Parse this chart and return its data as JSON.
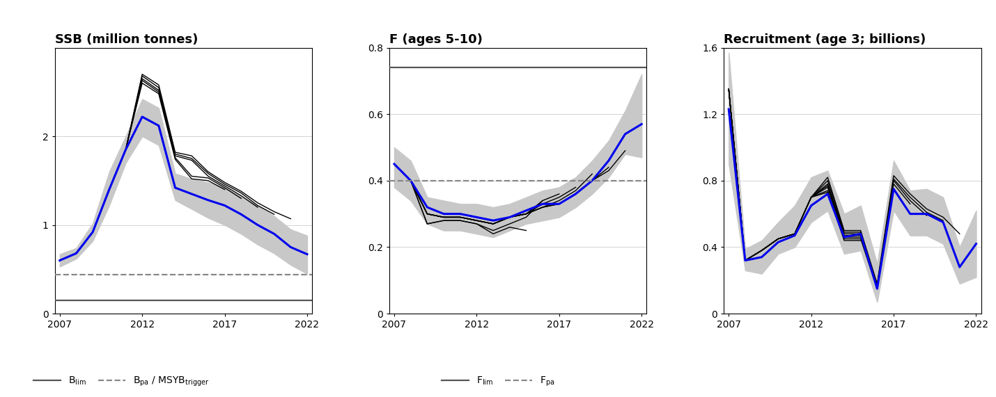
{
  "years": [
    2007,
    2008,
    2009,
    2010,
    2011,
    2012,
    2013,
    2014,
    2015,
    2016,
    2017,
    2018,
    2019,
    2020,
    2021,
    2022
  ],
  "ssb_blue": [
    0.6,
    0.68,
    0.92,
    1.4,
    1.85,
    2.22,
    2.12,
    1.42,
    1.35,
    1.28,
    1.22,
    1.12,
    1.0,
    0.9,
    0.75,
    0.67
  ],
  "ssb_ci_lo": [
    0.53,
    0.62,
    0.82,
    1.22,
    1.7,
    2.0,
    1.9,
    1.28,
    1.18,
    1.08,
    1.0,
    0.9,
    0.78,
    0.68,
    0.55,
    0.45
  ],
  "ssb_ci_hi": [
    0.67,
    0.74,
    1.02,
    1.6,
    2.0,
    2.42,
    2.32,
    1.58,
    1.52,
    1.48,
    1.42,
    1.32,
    1.22,
    1.1,
    0.95,
    0.88
  ],
  "ssb_retro": [
    [
      0.6,
      0.68,
      0.92,
      1.4,
      1.85,
      2.7,
      2.58,
      1.82,
      1.78,
      1.6,
      1.48,
      1.38,
      1.25,
      1.15,
      1.07,
      null
    ],
    [
      0.6,
      0.68,
      0.92,
      1.4,
      1.85,
      2.68,
      2.55,
      1.8,
      1.75,
      1.58,
      1.46,
      1.36,
      1.22,
      1.12,
      null,
      null
    ],
    [
      0.6,
      0.68,
      0.92,
      1.4,
      1.85,
      2.65,
      2.52,
      1.78,
      1.73,
      1.55,
      1.44,
      1.33,
      1.2,
      null,
      null,
      null
    ],
    [
      0.6,
      0.68,
      0.92,
      1.4,
      1.85,
      2.63,
      2.5,
      1.76,
      1.55,
      1.53,
      1.42,
      1.3,
      null,
      null,
      null,
      null
    ],
    [
      0.6,
      0.68,
      0.92,
      1.4,
      1.85,
      2.6,
      2.48,
      1.74,
      1.52,
      1.5,
      1.4,
      null,
      null,
      null,
      null,
      null
    ]
  ],
  "ssb_blim": 0.15,
  "ssb_bpa": 0.44,
  "ssb_ylim": [
    0,
    3.0
  ],
  "ssb_yticks": [
    0,
    1,
    2
  ],
  "f_blue": [
    0.45,
    0.4,
    0.32,
    0.3,
    0.3,
    0.29,
    0.28,
    0.29,
    0.31,
    0.33,
    0.33,
    0.36,
    0.4,
    0.46,
    0.54,
    0.57
  ],
  "f_ci_lo": [
    0.38,
    0.34,
    0.27,
    0.25,
    0.25,
    0.24,
    0.23,
    0.25,
    0.27,
    0.28,
    0.29,
    0.32,
    0.36,
    0.41,
    0.48,
    0.47
  ],
  "f_ci_hi": [
    0.5,
    0.46,
    0.35,
    0.34,
    0.33,
    0.33,
    0.32,
    0.33,
    0.35,
    0.37,
    0.38,
    0.41,
    0.46,
    0.52,
    0.61,
    0.72
  ],
  "f_retro": [
    [
      0.45,
      0.4,
      0.3,
      0.29,
      0.29,
      0.28,
      0.27,
      0.29,
      0.3,
      0.32,
      0.33,
      0.36,
      0.4,
      0.43,
      0.49,
      null
    ],
    [
      0.45,
      0.4,
      0.3,
      0.29,
      0.29,
      0.28,
      0.27,
      0.29,
      0.3,
      0.32,
      0.33,
      0.36,
      0.4,
      0.44,
      null,
      null
    ],
    [
      0.45,
      0.4,
      0.3,
      0.29,
      0.29,
      0.28,
      0.27,
      0.29,
      0.3,
      0.32,
      0.34,
      0.37,
      0.42,
      null,
      null,
      null
    ],
    [
      0.45,
      0.4,
      0.3,
      0.29,
      0.29,
      0.28,
      0.27,
      0.29,
      0.3,
      0.33,
      0.35,
      0.38,
      null,
      null,
      null,
      null
    ],
    [
      0.45,
      0.4,
      0.3,
      0.29,
      0.29,
      0.28,
      0.27,
      0.29,
      0.3,
      0.34,
      0.36,
      null,
      null,
      null,
      null,
      null
    ],
    [
      0.45,
      0.4,
      0.27,
      0.28,
      0.28,
      0.27,
      0.25,
      0.27,
      0.29,
      0.34,
      null,
      null,
      null,
      null,
      null,
      null
    ],
    [
      0.45,
      0.4,
      0.27,
      0.28,
      0.28,
      0.27,
      0.24,
      0.26,
      0.25,
      null,
      null,
      null,
      null,
      null,
      null,
      null
    ]
  ],
  "f_flim": 0.74,
  "f_fpa": 0.4,
  "f_ylim": [
    0,
    0.8
  ],
  "f_yticks": [
    0.0,
    0.2,
    0.4,
    0.6,
    0.8
  ],
  "rec_blue": [
    1.23,
    0.32,
    0.34,
    0.43,
    0.47,
    0.65,
    0.72,
    0.46,
    0.48,
    0.15,
    0.75,
    0.6,
    0.6,
    0.55,
    0.28,
    0.42
  ],
  "rec_ci_lo": [
    0.9,
    0.26,
    0.24,
    0.36,
    0.4,
    0.55,
    0.62,
    0.36,
    0.38,
    0.07,
    0.62,
    0.47,
    0.47,
    0.42,
    0.18,
    0.22
  ],
  "rec_ci_hi": [
    1.57,
    0.39,
    0.44,
    0.55,
    0.65,
    0.82,
    0.86,
    0.6,
    0.65,
    0.3,
    0.92,
    0.74,
    0.75,
    0.7,
    0.4,
    0.62
  ],
  "rec_retro": [
    [
      1.35,
      0.32,
      0.38,
      0.45,
      0.48,
      0.7,
      0.82,
      0.5,
      0.5,
      0.18,
      0.83,
      0.72,
      0.63,
      0.58,
      0.48,
      null
    ],
    [
      1.35,
      0.32,
      0.38,
      0.45,
      0.48,
      0.7,
      0.8,
      0.49,
      0.49,
      0.17,
      0.81,
      0.7,
      0.61,
      0.56,
      null,
      null
    ],
    [
      1.35,
      0.32,
      0.38,
      0.45,
      0.48,
      0.7,
      0.78,
      0.48,
      0.48,
      0.16,
      0.8,
      0.68,
      0.59,
      null,
      null,
      null
    ],
    [
      1.35,
      0.32,
      0.38,
      0.45,
      0.48,
      0.7,
      0.77,
      0.47,
      0.47,
      0.16,
      0.78,
      0.66,
      null,
      null,
      null,
      null
    ],
    [
      1.35,
      0.32,
      0.38,
      0.45,
      0.48,
      0.7,
      0.76,
      0.46,
      0.46,
      0.15,
      0.75,
      null,
      null,
      null,
      null,
      null
    ],
    [
      1.35,
      0.32,
      0.38,
      0.45,
      0.48,
      0.7,
      0.74,
      0.45,
      0.45,
      0.15,
      null,
      null,
      null,
      null,
      null,
      null
    ],
    [
      1.35,
      0.32,
      0.38,
      0.45,
      0.48,
      0.7,
      0.73,
      0.44,
      0.44,
      null,
      null,
      null,
      null,
      null,
      null,
      null
    ]
  ],
  "rec_ylim": [
    0,
    1.6
  ],
  "rec_yticks": [
    0.0,
    0.4,
    0.8,
    1.2,
    1.6
  ],
  "blue_color": "#0000EE",
  "black_color": "#000000",
  "grey_ci_color": "#C8C8C8",
  "ref_line_color": "#555555",
  "dashed_line_color": "#888888",
  "title1": "SSB (million tonnes)",
  "title2": "F (ages 5-10)",
  "title3": "Recruitment (age 3; billions)",
  "xticks": [
    2007,
    2012,
    2017,
    2022
  ],
  "title_fontsize": 13
}
